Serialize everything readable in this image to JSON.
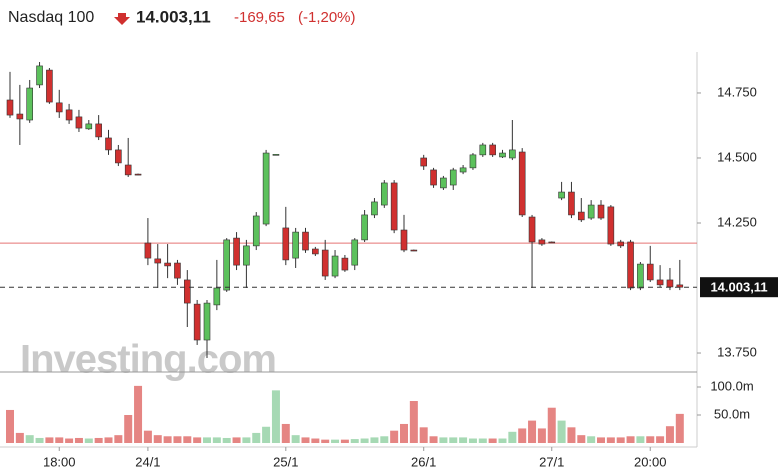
{
  "header": {
    "name": "Nasdaq 100",
    "price": "14.003,11",
    "change": "-169,65",
    "change_pct": "(-1,20%)"
  },
  "chart_data": {
    "type": "candlestick",
    "watermark": "Investing.com",
    "categories": [
      null,
      null,
      null,
      null,
      null,
      "18:00",
      null,
      null,
      null,
      null,
      null,
      null,
      null,
      null,
      "24/1",
      null,
      null,
      null,
      null,
      null,
      null,
      null,
      null,
      null,
      null,
      null,
      null,
      null,
      "25/1",
      null,
      null,
      null,
      null,
      null,
      null,
      null,
      null,
      null,
      null,
      null,
      null,
      null,
      "26/1",
      null,
      null,
      null,
      null,
      null,
      null,
      null,
      null,
      null,
      null,
      null,
      null,
      "27/1",
      null,
      null,
      null,
      null,
      null,
      null,
      null,
      null,
      null,
      "20:00",
      null,
      null,
      null
    ],
    "open": [
      14723,
      14669,
      14646,
      14781,
      14838,
      14712,
      14685,
      14658,
      14612,
      14631,
      14577,
      14531,
      14473,
      14438,
      14173,
      14112,
      14096,
      14096,
      14031,
      13938,
      13800,
      13935,
      13992,
      14192,
      14088,
      14162,
      14246,
      14512,
      14231,
      14115,
      14215,
      14150,
      14146,
      14046,
      14115,
      14088,
      14185,
      14281,
      14319,
      14404,
      14223,
      14146,
      14500,
      14454,
      14385,
      14396,
      14446,
      14462,
      14512,
      14550,
      14504,
      14500,
      14523,
      14273,
      14185,
      14177,
      14346,
      14369,
      14292,
      14269,
      14319,
      14312,
      14177,
      14177,
      14000,
      14092,
      14031,
      14031,
      14012
    ],
    "high": [
      14831,
      14781,
      14800,
      14869,
      14846,
      14762,
      14708,
      14685,
      14646,
      14665,
      14608,
      14550,
      14577,
      14440,
      14269,
      14169,
      14169,
      14108,
      14069,
      13954,
      13954,
      14108,
      14192,
      14215,
      14185,
      14292,
      14531,
      14515,
      14312,
      14231,
      14231,
      14158,
      14185,
      14146,
      14127,
      14192,
      14300,
      14346,
      14415,
      14415,
      14281,
      14148,
      14512,
      14462,
      14431,
      14462,
      14473,
      14519,
      14558,
      14558,
      14531,
      14646,
      14538,
      14281,
      14192,
      14179,
      14408,
      14408,
      14346,
      14338,
      14338,
      14319,
      14185,
      14185,
      14100,
      14162,
      14088,
      14077,
      14108
    ],
    "low": [
      14654,
      14550,
      14635,
      14769,
      14708,
      14654,
      14631,
      14600,
      14608,
      14569,
      14512,
      14469,
      14427,
      14434,
      14088,
      14000,
      14038,
      14012,
      13850,
      13781,
      13731,
      13915,
      13985,
      14069,
      14000,
      14146,
      14238,
      14511,
      14088,
      14077,
      14135,
      14123,
      14031,
      14038,
      14062,
      14069,
      14177,
      14269,
      14308,
      14211,
      14138,
      14142,
      14454,
      14385,
      14377,
      14377,
      14438,
      14454,
      14504,
      14504,
      14500,
      14492,
      14273,
      14000,
      14162,
      14173,
      14338,
      14269,
      14254,
      14262,
      14262,
      14162,
      14154,
      13992,
      13992,
      14023,
      14004,
      13992,
      13992
    ],
    "close": [
      14665,
      14650,
      14769,
      14854,
      14715,
      14677,
      14646,
      14615,
      14631,
      14581,
      14531,
      14481,
      14435,
      14436,
      14115,
      14096,
      14085,
      14038,
      13942,
      13800,
      13942,
      14000,
      14185,
      14088,
      14162,
      14277,
      14519,
      14514,
      14108,
      14215,
      14146,
      14131,
      14046,
      14123,
      14069,
      14185,
      14281,
      14331,
      14404,
      14223,
      14146,
      14144,
      14469,
      14396,
      14423,
      14454,
      14462,
      14512,
      14550,
      14512,
      14519,
      14531,
      14281,
      14177,
      14169,
      14175,
      14369,
      14281,
      14262,
      14319,
      14269,
      14169,
      14162,
      14000,
      14092,
      14031,
      14012,
      14004,
      14003.11
    ],
    "volume": [
      59,
      18,
      14,
      9,
      10,
      10,
      8,
      9,
      8,
      9,
      10,
      14,
      50,
      102,
      22,
      14,
      12,
      12,
      12,
      10,
      10,
      10,
      9,
      10,
      10,
      18,
      29,
      94,
      34,
      14,
      10,
      8,
      6,
      6,
      6,
      7,
      8,
      10,
      12,
      22,
      34,
      75,
      28,
      12,
      10,
      10,
      10,
      8,
      8,
      8,
      8,
      20,
      26,
      40,
      26,
      63,
      40,
      28,
      14,
      12,
      10,
      10,
      10,
      12,
      12,
      12,
      12,
      30,
      52
    ],
    "ylim": [
      13677,
      14896
    ],
    "yticks": [
      {
        "value": 13750,
        "label": "13.750"
      },
      {
        "value": 14250,
        "label": "14.250"
      },
      {
        "value": 14500,
        "label": "14.500"
      },
      {
        "value": 14750,
        "label": "14.750"
      }
    ],
    "vlim": [
      0,
      125
    ],
    "vticks": [
      {
        "value": 50,
        "label": "50.0m"
      },
      {
        "value": 100,
        "label": "100.0m"
      }
    ],
    "last_price": {
      "value": 14003.11,
      "label": "14.003,11"
    },
    "prev_close": 14172.76,
    "up_color": "#5cc15c",
    "down_color": "#d0302f",
    "vol_up_color": "#a6d9b4",
    "vol_down_color": "#e58583",
    "prev_close_color": "#e57373"
  }
}
